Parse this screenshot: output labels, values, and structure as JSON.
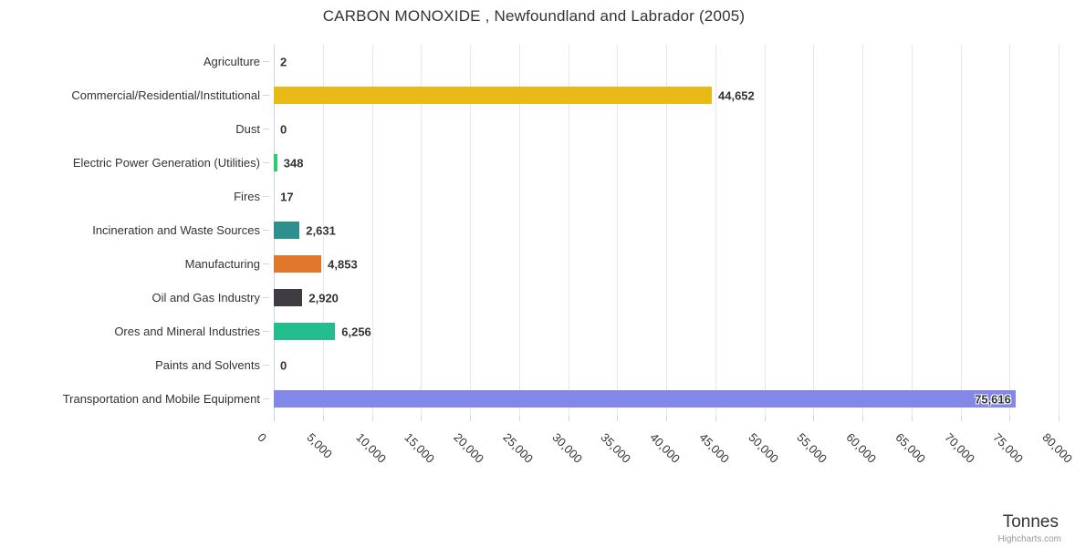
{
  "chart_data": {
    "type": "bar",
    "orientation": "horizontal",
    "title": "CARBON MONOXIDE , Newfoundland and Labrador (2005)",
    "xlabel": "Tonnes",
    "xlim": [
      0,
      80000
    ],
    "x_ticks": [
      0,
      5000,
      10000,
      15000,
      20000,
      25000,
      30000,
      35000,
      40000,
      45000,
      50000,
      55000,
      60000,
      65000,
      70000,
      75000,
      80000
    ],
    "x_tick_labels": [
      "0",
      "5,000",
      "10,000",
      "15,000",
      "20,000",
      "25,000",
      "30,000",
      "35,000",
      "40,000",
      "45,000",
      "50,000",
      "55,000",
      "60,000",
      "65,000",
      "70,000",
      "75,000",
      "80,000"
    ],
    "grid": true,
    "legend": false,
    "categories": [
      "Agriculture",
      "Commercial/Residential/Institutional",
      "Dust",
      "Electric Power Generation (Utilities)",
      "Fires",
      "Incineration and Waste Sources",
      "Manufacturing",
      "Oil and Gas Industry",
      "Ores and Mineral Industries",
      "Paints and Solvents",
      "Transportation and Mobile Equipment"
    ],
    "values": [
      2,
      44652,
      0,
      348,
      17,
      2631,
      4853,
      2920,
      6256,
      0,
      75616
    ],
    "value_labels": [
      "2",
      "44,652",
      "0",
      "348",
      "17",
      "2,631",
      "4,853",
      "2,920",
      "6,256",
      "0",
      "75,616"
    ],
    "bar_colors": [
      "#BBBBBB",
      "#E9BA17",
      "#BBBBBB",
      "#2ECC71",
      "#BBBBBB",
      "#2E8F8C",
      "#E1772B",
      "#413C44",
      "#23BD8E",
      "#BBBBBB",
      "#8287E8"
    ]
  },
  "credits": "Highcharts.com",
  "style": {
    "grid_color": "#E6E6E6",
    "axis_line_color": "#CCD6EB",
    "title_color": "#333333",
    "label_color": "#333333",
    "value_label_color": "#333333",
    "credits_color": "#999999"
  }
}
